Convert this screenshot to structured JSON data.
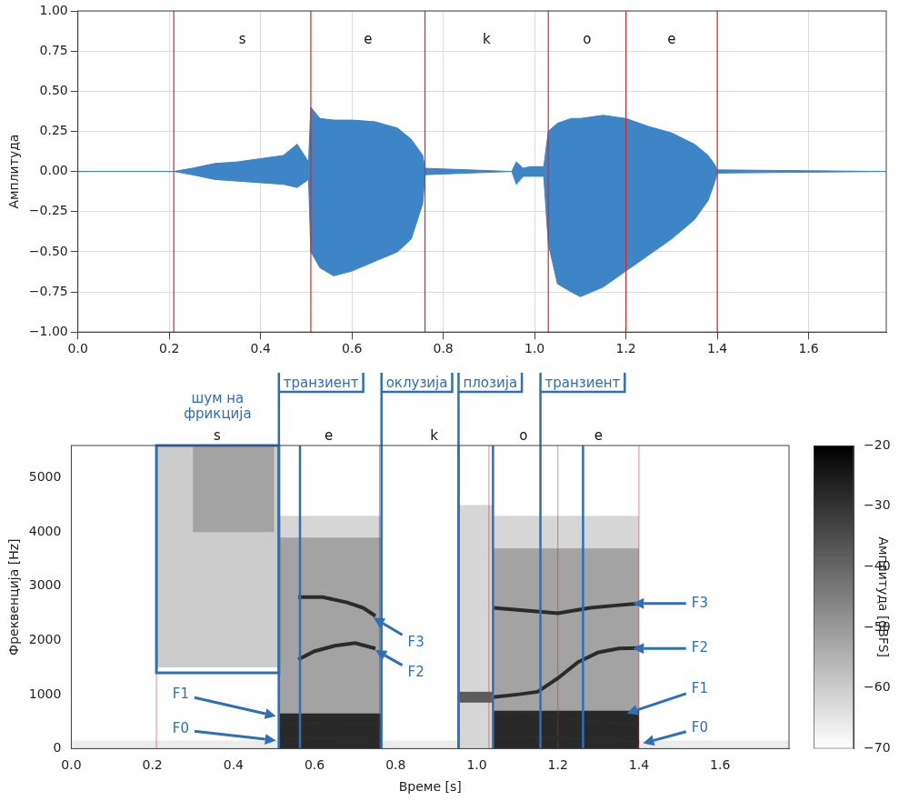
{
  "chart_data": [
    {
      "type": "waveform",
      "y_label": "Амплитуда",
      "xlim": [
        0,
        1.77
      ],
      "xticks": [
        {
          "value": 0,
          "label": "0.0"
        },
        0.2,
        0.4,
        0.6,
        0.8,
        {
          "value": 1,
          "label": "1.0"
        },
        1.2,
        1.4,
        1.6
      ],
      "ylim": [
        -1,
        1
      ],
      "yticks": [
        {
          "value": -1,
          "label": "−1.00"
        },
        {
          "value": -0.75,
          "label": "−0.75"
        },
        {
          "value": -0.5,
          "label": "−0.50"
        },
        {
          "value": -0.25,
          "label": "−0.25"
        },
        {
          "value": 0,
          "label": "0.00"
        },
        0.25,
        {
          "value": 0.5,
          "label": "0.50"
        },
        0.75,
        {
          "value": 1,
          "label": "1.00"
        }
      ],
      "grid": true,
      "color": "#3d85c6",
      "x": [
        0,
        0.21,
        0.25,
        0.3,
        0.35,
        0.4,
        0.45,
        0.48,
        0.505,
        0.51,
        0.53,
        0.56,
        0.6,
        0.65,
        0.7,
        0.73,
        0.755,
        0.76,
        0.95,
        0.96,
        0.975,
        0.99,
        1.02,
        1.03,
        1.05,
        1.08,
        1.1,
        1.15,
        1.2,
        1.25,
        1.3,
        1.35,
        1.38,
        1.395,
        1.4,
        1.77
      ],
      "upper": [
        0,
        0,
        0.02,
        0.05,
        0.06,
        0.08,
        0.1,
        0.17,
        0.06,
        0.4,
        0.33,
        0.32,
        0.32,
        0.31,
        0.27,
        0.2,
        0.1,
        0.02,
        0,
        0.06,
        0.02,
        0.03,
        0.03,
        0.25,
        0.3,
        0.33,
        0.33,
        0.35,
        0.33,
        0.28,
        0.24,
        0.17,
        0.1,
        0.04,
        0.01,
        0
      ],
      "lower": [
        0,
        0,
        -0.02,
        -0.05,
        -0.06,
        -0.07,
        -0.08,
        -0.1,
        -0.05,
        -0.5,
        -0.6,
        -0.65,
        -0.62,
        -0.56,
        -0.5,
        -0.42,
        -0.2,
        -0.02,
        0,
        -0.08,
        -0.03,
        -0.03,
        -0.03,
        -0.45,
        -0.7,
        -0.75,
        -0.78,
        -0.72,
        -0.62,
        -0.52,
        -0.42,
        -0.3,
        -0.18,
        -0.06,
        -0.01,
        0
      ],
      "segments": [
        {
          "label": "s",
          "x": [
            0.21,
            0.51
          ]
        },
        {
          "label": "e",
          "x": [
            0.51,
            0.76
          ]
        },
        {
          "label": "k",
          "x": [
            0.76,
            1.03
          ]
        },
        {
          "label": "o",
          "x": [
            1.03,
            1.2
          ]
        },
        {
          "label": "e",
          "x": [
            1.2,
            1.4
          ]
        }
      ]
    },
    {
      "type": "spectrogram",
      "x_label": "Време [s]",
      "y_label": "Фреквенција [Hz]",
      "xlim": [
        0,
        1.77
      ],
      "xticks": [
        {
          "value": 0,
          "label": "0.0"
        },
        0.2,
        0.4,
        0.6,
        0.8,
        {
          "value": 1,
          "label": "1.0"
        },
        1.2,
        1.4,
        1.6
      ],
      "ylim": [
        0,
        5600
      ],
      "yticks": [
        0,
        1000,
        2000,
        3000,
        4000,
        5000
      ],
      "grid": false,
      "colorbar": {
        "label": "Амплитуда [dBFS]",
        "range": [
          -70,
          -20
        ],
        "ticks": [
          {
            "value": -70,
            "label": "−70"
          },
          {
            "value": -60,
            "label": "−60"
          },
          {
            "value": -50,
            "label": "−50"
          },
          {
            "value": -40,
            "label": "−40"
          },
          {
            "value": -30,
            "label": "−30"
          },
          {
            "value": -20,
            "label": "−20"
          }
        ]
      },
      "cells": [
        {
          "x": [
            0,
            1.77
          ],
          "y": [
            0,
            150
          ],
          "value": -66
        },
        {
          "x": [
            0.21,
            0.512
          ],
          "y": [
            1500,
            5600
          ],
          "value": -60
        },
        {
          "x": [
            0.3,
            0.5
          ],
          "y": [
            4000,
            5600
          ],
          "value": -52
        },
        {
          "x": [
            0.512,
            0.765
          ],
          "y": [
            0,
            4300
          ],
          "value": -62
        },
        {
          "x": [
            0.512,
            0.765
          ],
          "y": [
            0,
            3900
          ],
          "value": -52
        },
        {
          "x": [
            0.512,
            0.765
          ],
          "y": [
            0,
            650
          ],
          "value": -28
        },
        {
          "x": [
            0.955,
            1.04
          ],
          "y": [
            0,
            4500
          ],
          "value": -62
        },
        {
          "x": [
            0.955,
            1.04
          ],
          "y": [
            850,
            1050
          ],
          "value": -38
        },
        {
          "x": [
            1.04,
            1.4
          ],
          "y": [
            0,
            4300
          ],
          "value": -62
        },
        {
          "x": [
            1.04,
            1.4
          ],
          "y": [
            0,
            3700
          ],
          "value": -52
        },
        {
          "x": [
            1.04,
            1.4
          ],
          "y": [
            0,
            700
          ],
          "value": -28
        }
      ],
      "series": [
        {
          "name": "F0",
          "color": "#2b2b2b",
          "x": [
            0.52,
            0.6,
            0.7,
            0.76,
            0.9,
            1.04,
            1.15,
            1.25,
            1.35,
            1.4
          ],
          "values": [
            180,
            190,
            170,
            150,
            null,
            210,
            200,
            180,
            160,
            130
          ]
        },
        {
          "name": "F1",
          "color": "#2b2b2b",
          "x": [
            0.52,
            0.6,
            0.7,
            0.76,
            0.9,
            1.04,
            1.1,
            1.15,
            1.2,
            1.27,
            1.35,
            1.4
          ],
          "values": [
            450,
            480,
            470,
            440,
            null,
            620,
            660,
            650,
            580,
            500,
            470,
            450
          ]
        },
        {
          "name": "F2",
          "color": "#2b2b2b",
          "x": [
            0.56,
            0.6,
            0.65,
            0.7,
            0.75,
            0.9,
            1.04,
            1.1,
            1.15,
            1.2,
            1.25,
            1.3,
            1.35,
            1.4
          ],
          "values": [
            1650,
            1800,
            1900,
            1950,
            1850,
            null,
            950,
            1000,
            1050,
            1300,
            1600,
            1780,
            1850,
            1860
          ]
        },
        {
          "name": "F3",
          "color": "#2b2b2b",
          "x": [
            0.56,
            0.62,
            0.68,
            0.72,
            0.75,
            0.9,
            1.04,
            1.12,
            1.2,
            1.28,
            1.35,
            1.4
          ],
          "values": [
            2800,
            2800,
            2700,
            2600,
            2450,
            null,
            2600,
            2550,
            2500,
            2600,
            2650,
            2680
          ]
        }
      ],
      "segments": [
        {
          "label": "s",
          "x": [
            0.21,
            0.51
          ]
        },
        {
          "label": "e",
          "x": [
            0.51,
            0.76
          ]
        },
        {
          "label": "k",
          "x": [
            0.76,
            1.03
          ]
        },
        {
          "label": "o",
          "x": [
            1.03,
            1.2
          ]
        },
        {
          "label": "e",
          "x": [
            1.2,
            1.4
          ]
        }
      ],
      "noise_box": {
        "label": "шум на фрикција",
        "x": [
          0.21,
          0.512
        ],
        "y": [
          1400,
          5600
        ]
      },
      "regions": [
        {
          "label": "транзиент",
          "x": [
            0.512,
            0.564
          ]
        },
        {
          "label": "оклузија",
          "x": [
            0.765,
            0.955
          ]
        },
        {
          "label": "плозија",
          "x": [
            0.955,
            1.04
          ]
        },
        {
          "label": "транзиент",
          "x": [
            1.157,
            1.262
          ]
        }
      ],
      "annotations": [
        {
          "text": "F1",
          "xy": [
            0.505,
            600
          ],
          "xytext": [
            0.27,
            1000
          ]
        },
        {
          "text": "F0",
          "xy": [
            0.505,
            150
          ],
          "xytext": [
            0.27,
            350
          ]
        },
        {
          "text": "F3",
          "xy": [
            0.745,
            2420
          ],
          "xytext": [
            0.85,
            1950
          ]
        },
        {
          "text": "F2",
          "xy": [
            0.75,
            1820
          ],
          "xytext": [
            0.85,
            1400
          ]
        },
        {
          "text": "F3",
          "xy": [
            1.385,
            2680
          ],
          "xytext": [
            1.55,
            2680
          ]
        },
        {
          "text": "F2",
          "xy": [
            1.385,
            1850
          ],
          "xytext": [
            1.55,
            1850
          ]
        },
        {
          "text": "F1",
          "xy": [
            1.37,
            650
          ],
          "xytext": [
            1.55,
            1100
          ]
        },
        {
          "text": "F0",
          "xy": [
            1.41,
            100
          ],
          "xytext": [
            1.55,
            380
          ]
        }
      ]
    }
  ]
}
